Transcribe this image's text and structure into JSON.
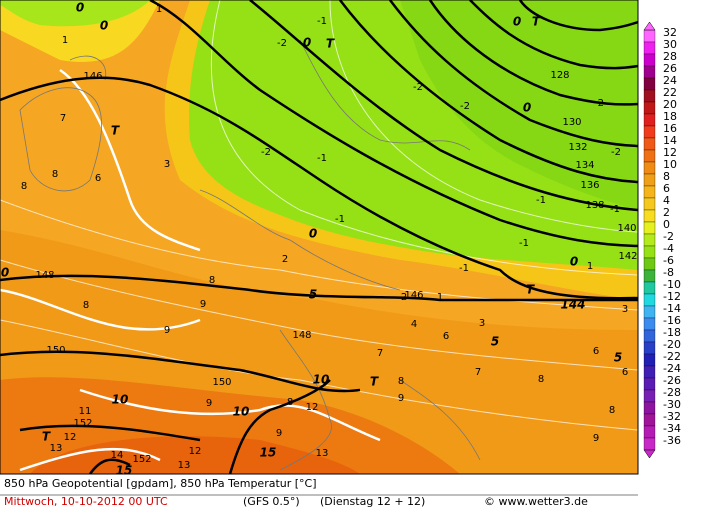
{
  "map_labels": [
    "0",
    "1",
    "0",
    "1",
    "146",
    "7",
    "T",
    "6",
    "8",
    "8",
    "3",
    "-1",
    "-2",
    "0",
    "T",
    "-2",
    "-2",
    "-2",
    "-1",
    "-1",
    "0",
    "0",
    "T",
    "128",
    "-2",
    "130",
    "0",
    "132",
    "-2",
    "134",
    "136",
    "-1",
    "138",
    "-1",
    "140",
    "-1",
    "142",
    "-1",
    "0",
    "1",
    "146",
    "1",
    "2",
    "T",
    "144",
    "5",
    "148",
    "0",
    "2",
    "8",
    "8",
    "9",
    "9",
    "148",
    "4",
    "3",
    "6",
    "3",
    "5",
    "150",
    "7",
    "6",
    "5",
    "6",
    "7",
    "8",
    "T",
    "10",
    "8",
    "150",
    "10",
    "9",
    "9",
    "10",
    "12",
    "8",
    "8",
    "11",
    "152",
    "T",
    "12",
    "13",
    "9",
    "9",
    "12",
    "14",
    "152",
    "13",
    "15",
    "15",
    "13"
  ],
  "color_scale": {
    "values": [
      32,
      30,
      28,
      26,
      24,
      22,
      20,
      18,
      16,
      14,
      12,
      10,
      8,
      6,
      4,
      2,
      0,
      -2,
      -4,
      -6,
      -8,
      -10,
      -12,
      -14,
      -16,
      -18,
      -20,
      -22,
      -24,
      -26,
      -28,
      -30,
      -32,
      -34,
      -36
    ],
    "colors": [
      "#ff66ff",
      "#ee22ee",
      "#cc00cc",
      "#a00090",
      "#800040",
      "#a01020",
      "#c01818",
      "#e02020",
      "#f03c1c",
      "#f05a18",
      "#f07014",
      "#f08c14",
      "#f0a018",
      "#f5b41c",
      "#f5c820",
      "#f8dc20",
      "#e6f020",
      "#b4ea1c",
      "#96e016",
      "#6ec814",
      "#3cb43c",
      "#20c8a0",
      "#20d8e0",
      "#40b4f0",
      "#3c8cf0",
      "#3264dc",
      "#2840c8",
      "#2020b4",
      "#4020b4",
      "#5a1cb4",
      "#7820b4",
      "#8c14a0",
      "#a0149a",
      "#b41cb4",
      "#c828c8"
    ]
  },
  "footer": {
    "caption": "850 hPa Geopotential [gpdam], 850 hPa Temperatur [°C]",
    "date": "Mittwoch, 10-10-2012  00 UTC",
    "model": "(GFS 0.5°)",
    "run": "(Dienstag 12 + 12)",
    "credit": "© www.wetter3.de"
  }
}
